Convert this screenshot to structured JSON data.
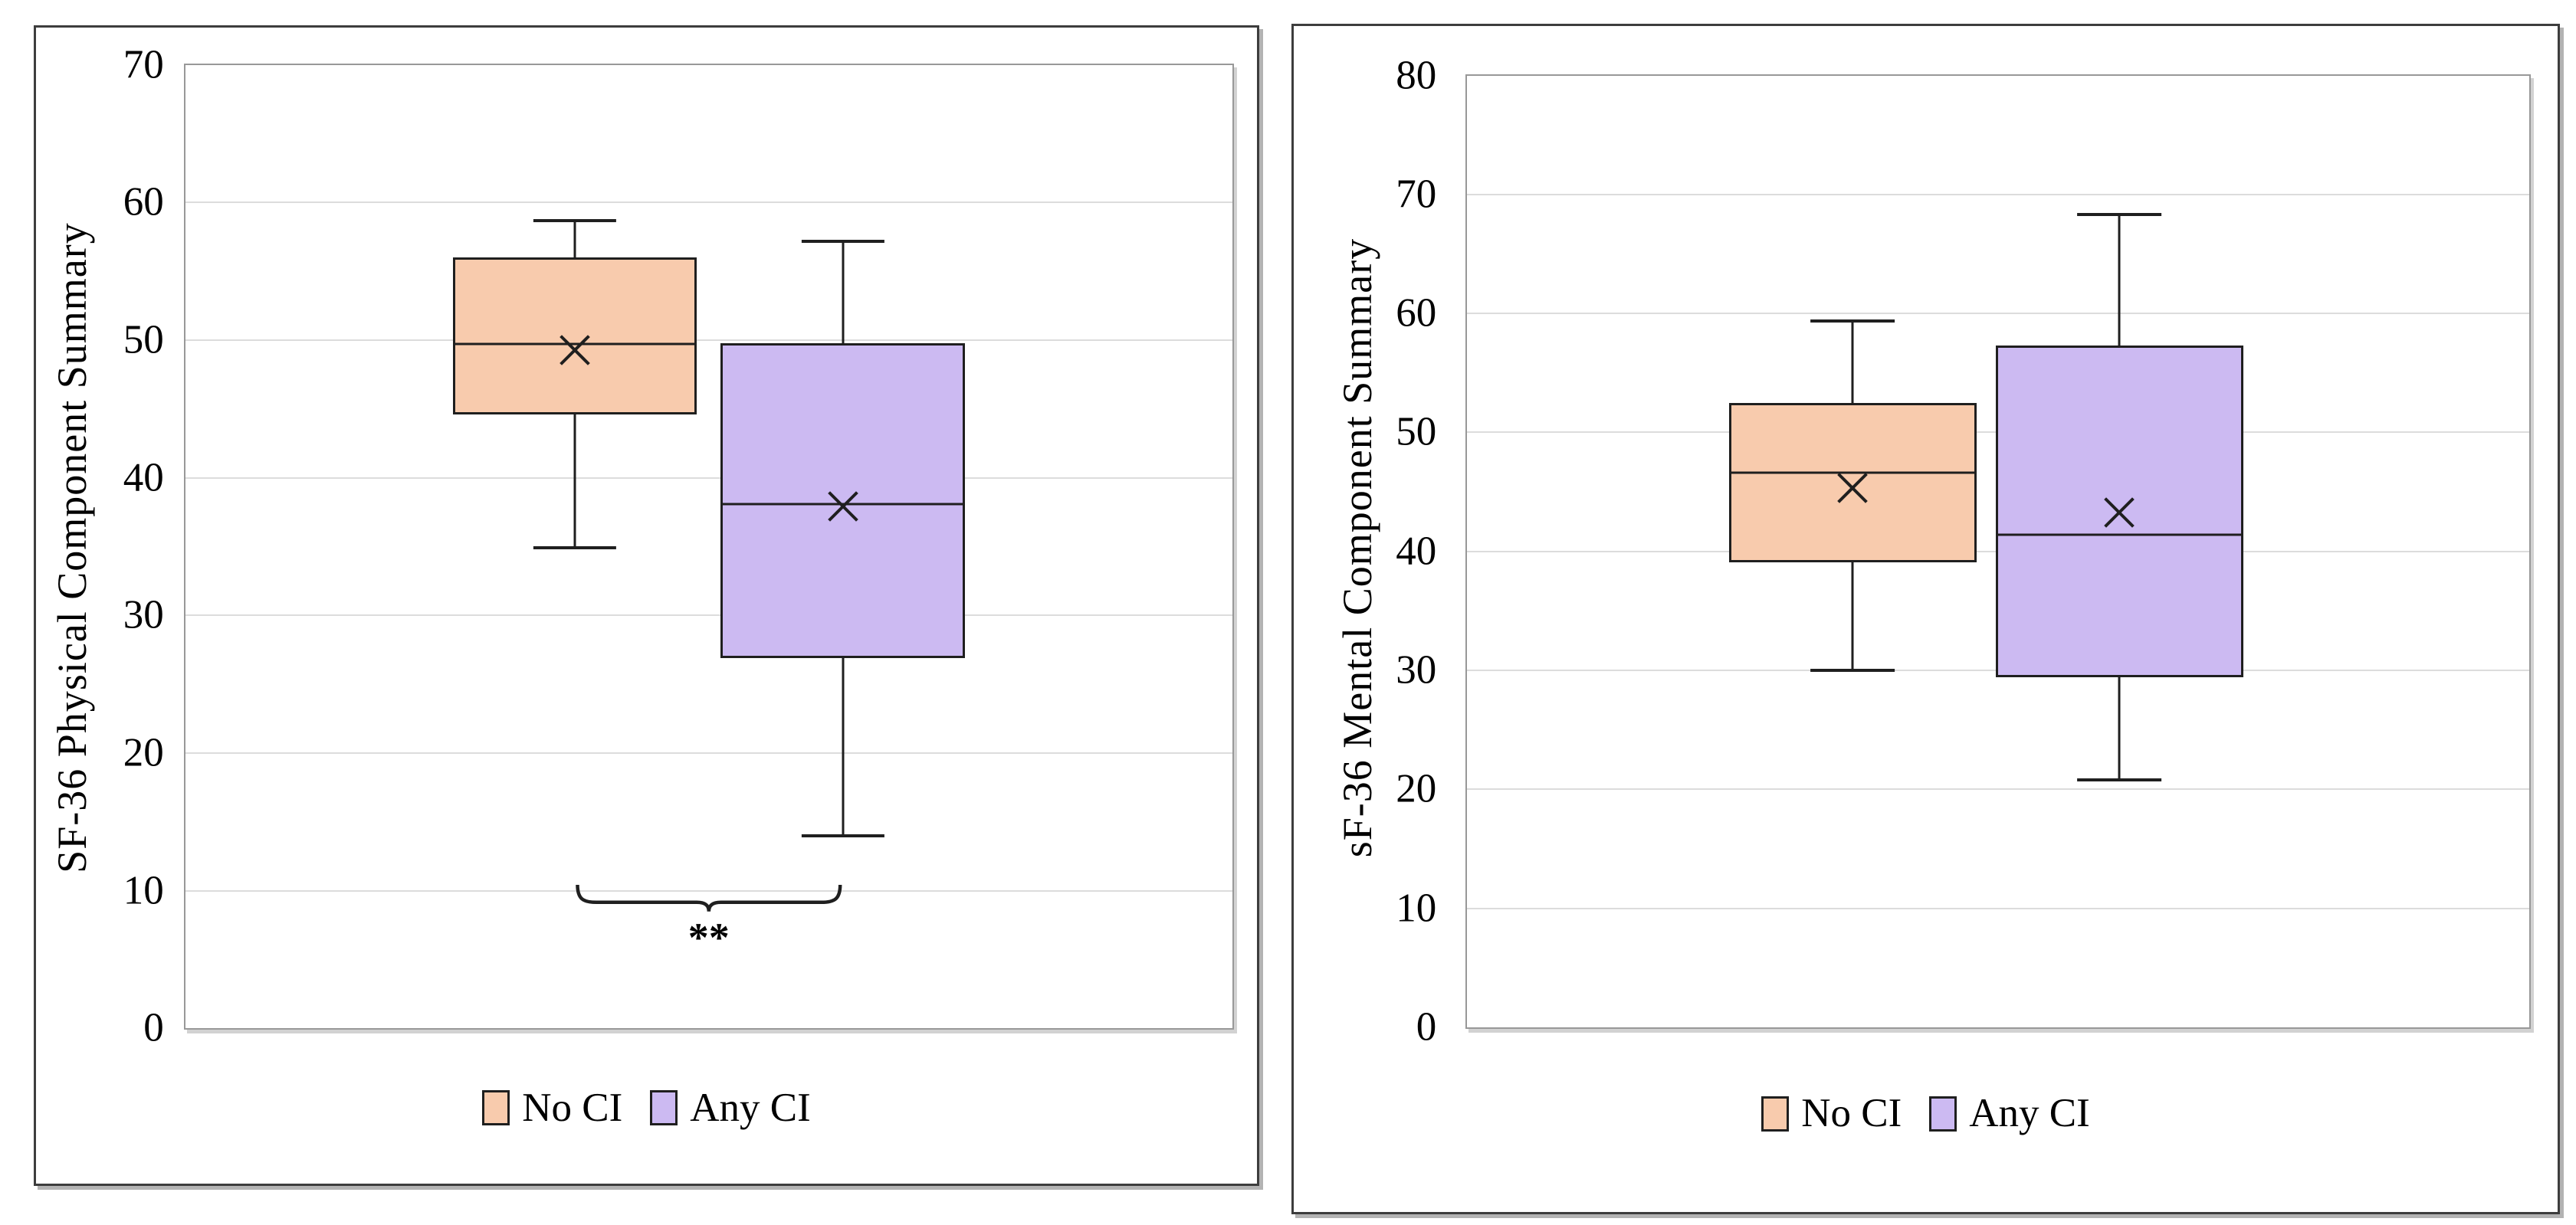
{
  "figure": {
    "background": "#FFFFFF",
    "box_border_color": "#1F1F1F",
    "gridline_color": "#DCDCDC"
  },
  "legend": {
    "items": [
      {
        "label": "No CI",
        "color": "#F8CBAD"
      },
      {
        "label": "Any CI",
        "color": "#CCBAF2"
      }
    ]
  },
  "chart_data": [
    {
      "type": "boxplot",
      "panel": "left",
      "title": "",
      "ylabel": "SF-36 Physical Component Summary",
      "ylim": [
        0,
        70
      ],
      "yticks": [
        0,
        10,
        20,
        30,
        40,
        50,
        60,
        70
      ],
      "grid": "horizontal-light",
      "legend_position": "bottom-center",
      "categories": [
        "No CI",
        "Any CI"
      ],
      "series": [
        {
          "name": "No CI",
          "color": "#F8CBAD",
          "min": 34.9,
          "q1": 44.6,
          "median": 49.7,
          "mean": 49.3,
          "q3": 56.0,
          "max": 58.7
        },
        {
          "name": "Any CI",
          "color": "#CCBAF2",
          "min": 14.0,
          "q1": 26.9,
          "median": 38.1,
          "mean": 37.9,
          "q3": 49.8,
          "max": 57.2
        }
      ],
      "significance": {
        "label": "**",
        "between": [
          0,
          1
        ],
        "y": 10.4
      },
      "x_centers_pct": [
        37.2,
        62.8
      ],
      "box_width_pct": 23.3
    },
    {
      "type": "boxplot",
      "panel": "right",
      "title": "",
      "ylabel": "sF-36 Mental Component Summary",
      "ylim": [
        0,
        80
      ],
      "yticks": [
        0,
        10,
        20,
        30,
        40,
        50,
        60,
        70,
        80
      ],
      "grid": "horizontal-light",
      "legend_position": "bottom-center",
      "categories": [
        "No CI",
        "Any CI"
      ],
      "series": [
        {
          "name": "No CI",
          "color": "#F8CBAD",
          "min": 30.0,
          "q1": 39.1,
          "median": 46.6,
          "mean": 45.3,
          "q3": 52.5,
          "max": 59.4
        },
        {
          "name": "Any CI",
          "color": "#CCBAF2",
          "min": 20.8,
          "q1": 29.4,
          "median": 41.4,
          "mean": 43.3,
          "q3": 57.3,
          "max": 68.3
        }
      ],
      "x_centers_pct": [
        36.3,
        61.4
      ],
      "box_width_pct": 23.3
    }
  ]
}
